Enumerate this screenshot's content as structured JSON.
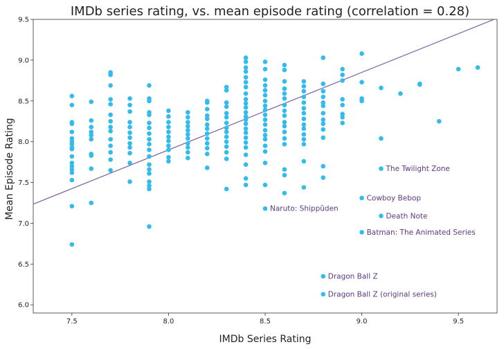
{
  "chart_data": {
    "type": "scatter",
    "title": "IMDb series rating, vs. mean episode rating (correlation = 0.28)",
    "xlabel": "IMDb Series Rating",
    "ylabel": "Mean Episode Rating",
    "xlim": [
      7.3,
      9.7
    ],
    "ylim": [
      5.9,
      9.5
    ],
    "xticks": [
      "7.5",
      "8.0",
      "8.5",
      "9.0",
      "9.5"
    ],
    "yticks": [
      "6.0",
      "6.5",
      "7.0",
      "7.5",
      "8.0",
      "8.5",
      "9.0",
      "9.5"
    ],
    "grid": false,
    "point_color": "#33bbee",
    "line_color": "#7d5fa0",
    "annotation_color": "#5a3a80",
    "trendline": {
      "slope": 0.95,
      "intercept": 0.3
    },
    "points": [
      [
        7.5,
        8.56
      ],
      [
        7.5,
        8.45
      ],
      [
        7.5,
        8.24
      ],
      [
        7.5,
        8.22
      ],
      [
        7.5,
        8.12
      ],
      [
        7.5,
        8.04
      ],
      [
        7.5,
        8.0
      ],
      [
        7.5,
        7.97
      ],
      [
        7.5,
        7.93
      ],
      [
        7.5,
        7.91
      ],
      [
        7.5,
        7.82
      ],
      [
        7.5,
        7.74
      ],
      [
        7.5,
        7.7
      ],
      [
        7.5,
        7.66
      ],
      [
        7.5,
        7.62
      ],
      [
        7.5,
        7.53
      ],
      [
        7.5,
        7.21
      ],
      [
        7.5,
        6.74
      ],
      [
        7.6,
        8.49
      ],
      [
        7.6,
        8.26
      ],
      [
        7.6,
        8.18
      ],
      [
        7.6,
        8.12
      ],
      [
        7.6,
        8.08
      ],
      [
        7.6,
        8.03
      ],
      [
        7.6,
        7.85
      ],
      [
        7.6,
        7.83
      ],
      [
        7.6,
        7.67
      ],
      [
        7.6,
        7.25
      ],
      [
        7.7,
        8.85
      ],
      [
        7.7,
        8.82
      ],
      [
        7.7,
        8.69
      ],
      [
        7.7,
        8.52
      ],
      [
        7.7,
        8.46
      ],
      [
        7.7,
        8.33
      ],
      [
        7.7,
        8.25
      ],
      [
        7.7,
        8.18
      ],
      [
        7.7,
        8.13
      ],
      [
        7.7,
        8.03
      ],
      [
        7.7,
        7.95
      ],
      [
        7.7,
        7.87
      ],
      [
        7.7,
        7.78
      ],
      [
        7.7,
        7.65
      ],
      [
        7.8,
        8.53
      ],
      [
        7.8,
        8.45
      ],
      [
        7.8,
        8.37
      ],
      [
        7.8,
        8.24
      ],
      [
        7.8,
        8.18
      ],
      [
        7.8,
        8.11
      ],
      [
        7.8,
        8.05
      ],
      [
        7.8,
        7.98
      ],
      [
        7.8,
        7.93
      ],
      [
        7.8,
        7.86
      ],
      [
        7.8,
        7.74
      ],
      [
        7.8,
        7.51
      ],
      [
        7.9,
        8.69
      ],
      [
        7.9,
        8.53
      ],
      [
        7.9,
        8.5
      ],
      [
        7.9,
        8.36
      ],
      [
        7.9,
        8.33
      ],
      [
        7.9,
        8.23
      ],
      [
        7.9,
        8.17
      ],
      [
        7.9,
        8.1
      ],
      [
        7.9,
        8.03
      ],
      [
        7.9,
        7.97
      ],
      [
        7.9,
        7.9
      ],
      [
        7.9,
        7.82
      ],
      [
        7.9,
        7.72
      ],
      [
        7.9,
        7.66
      ],
      [
        7.9,
        7.61
      ],
      [
        7.9,
        7.51
      ],
      [
        7.9,
        7.46
      ],
      [
        7.9,
        7.42
      ],
      [
        7.9,
        6.96
      ],
      [
        8.0,
        8.38
      ],
      [
        8.0,
        8.31
      ],
      [
        8.0,
        8.24
      ],
      [
        8.0,
        8.18
      ],
      [
        8.0,
        8.12
      ],
      [
        8.0,
        8.06
      ],
      [
        8.0,
        8.01
      ],
      [
        8.0,
        7.95
      ],
      [
        8.0,
        7.9
      ],
      [
        8.0,
        7.81
      ],
      [
        8.0,
        7.76
      ],
      [
        8.1,
        8.36
      ],
      [
        8.1,
        8.3
      ],
      [
        8.1,
        8.24
      ],
      [
        8.1,
        8.19
      ],
      [
        8.1,
        8.14
      ],
      [
        8.1,
        8.09
      ],
      [
        8.1,
        8.04
      ],
      [
        8.1,
        7.98
      ],
      [
        8.1,
        7.93
      ],
      [
        8.1,
        7.87
      ],
      [
        8.1,
        7.8
      ],
      [
        8.2,
        8.5
      ],
      [
        8.2,
        8.48
      ],
      [
        8.2,
        8.4
      ],
      [
        8.2,
        8.32
      ],
      [
        8.2,
        8.28
      ],
      [
        8.2,
        8.21
      ],
      [
        8.2,
        8.16
      ],
      [
        8.2,
        8.1
      ],
      [
        8.2,
        8.04
      ],
      [
        8.2,
        7.98
      ],
      [
        8.2,
        7.92
      ],
      [
        8.2,
        7.85
      ],
      [
        8.2,
        7.68
      ],
      [
        8.3,
        8.67
      ],
      [
        8.3,
        8.63
      ],
      [
        8.3,
        8.48
      ],
      [
        8.3,
        8.43
      ],
      [
        8.3,
        8.35
      ],
      [
        8.3,
        8.3
      ],
      [
        8.3,
        8.23
      ],
      [
        8.3,
        8.17
      ],
      [
        8.3,
        8.12
      ],
      [
        8.3,
        8.06
      ],
      [
        8.3,
        8.0
      ],
      [
        8.3,
        7.94
      ],
      [
        8.3,
        7.87
      ],
      [
        8.3,
        7.79
      ],
      [
        8.3,
        7.42
      ],
      [
        8.4,
        9.03
      ],
      [
        8.4,
        8.98
      ],
      [
        8.4,
        8.91
      ],
      [
        8.4,
        8.86
      ],
      [
        8.4,
        8.79
      ],
      [
        8.4,
        8.73
      ],
      [
        8.4,
        8.67
      ],
      [
        8.4,
        8.59
      ],
      [
        8.4,
        8.52
      ],
      [
        8.4,
        8.47
      ],
      [
        8.4,
        8.42
      ],
      [
        8.4,
        8.36
      ],
      [
        8.4,
        8.31
      ],
      [
        8.4,
        8.27
      ],
      [
        8.4,
        8.22
      ],
      [
        8.4,
        8.16
      ],
      [
        8.4,
        8.11
      ],
      [
        8.4,
        8.05
      ],
      [
        8.4,
        7.99
      ],
      [
        8.4,
        7.93
      ],
      [
        8.4,
        7.84
      ],
      [
        8.4,
        7.72
      ],
      [
        8.4,
        7.55
      ],
      [
        8.4,
        7.47
      ],
      [
        8.5,
        8.98
      ],
      [
        8.5,
        8.89
      ],
      [
        8.5,
        8.76
      ],
      [
        8.5,
        8.69
      ],
      [
        8.5,
        8.63
      ],
      [
        8.5,
        8.57
      ],
      [
        8.5,
        8.5
      ],
      [
        8.5,
        8.44
      ],
      [
        8.5,
        8.39
      ],
      [
        8.5,
        8.33
      ],
      [
        8.5,
        8.27
      ],
      [
        8.5,
        8.21
      ],
      [
        8.5,
        8.14
      ],
      [
        8.5,
        8.08
      ],
      [
        8.5,
        8.03
      ],
      [
        8.5,
        7.95
      ],
      [
        8.5,
        7.88
      ],
      [
        8.5,
        7.74
      ],
      [
        8.5,
        7.47
      ],
      [
        8.5,
        7.18
      ],
      [
        8.6,
        8.94
      ],
      [
        8.6,
        8.88
      ],
      [
        8.6,
        8.74
      ],
      [
        8.6,
        8.65
      ],
      [
        8.6,
        8.59
      ],
      [
        8.6,
        8.53
      ],
      [
        8.6,
        8.45
      ],
      [
        8.6,
        8.38
      ],
      [
        8.6,
        8.32
      ],
      [
        8.6,
        8.24
      ],
      [
        8.6,
        8.19
      ],
      [
        8.6,
        8.12
      ],
      [
        8.6,
        8.04
      ],
      [
        8.6,
        7.97
      ],
      [
        8.6,
        7.66
      ],
      [
        8.6,
        7.59
      ],
      [
        8.6,
        7.37
      ],
      [
        8.7,
        8.74
      ],
      [
        8.7,
        8.68
      ],
      [
        8.7,
        8.62
      ],
      [
        8.7,
        8.55
      ],
      [
        8.7,
        8.48
      ],
      [
        8.7,
        8.41
      ],
      [
        8.7,
        8.35
      ],
      [
        8.7,
        8.28
      ],
      [
        8.7,
        8.21
      ],
      [
        8.7,
        8.16
      ],
      [
        8.7,
        8.09
      ],
      [
        8.7,
        8.03
      ],
      [
        8.7,
        7.97
      ],
      [
        8.7,
        7.76
      ],
      [
        8.7,
        7.44
      ],
      [
        8.8,
        9.03
      ],
      [
        8.8,
        8.71
      ],
      [
        8.8,
        8.62
      ],
      [
        8.8,
        8.55
      ],
      [
        8.8,
        8.48
      ],
      [
        8.8,
        8.44
      ],
      [
        8.8,
        8.35
      ],
      [
        8.8,
        8.27
      ],
      [
        8.8,
        8.22
      ],
      [
        8.8,
        8.15
      ],
      [
        8.8,
        8.05
      ],
      [
        8.8,
        7.7
      ],
      [
        8.8,
        7.56
      ],
      [
        8.8,
        6.35
      ],
      [
        8.8,
        6.13
      ],
      [
        8.9,
        8.89
      ],
      [
        8.9,
        8.82
      ],
      [
        8.9,
        8.75
      ],
      [
        8.9,
        8.52
      ],
      [
        8.9,
        8.45
      ],
      [
        8.9,
        8.34
      ],
      [
        8.9,
        8.3
      ],
      [
        8.9,
        8.23
      ],
      [
        9.0,
        9.08
      ],
      [
        9.0,
        8.73
      ],
      [
        9.0,
        8.53
      ],
      [
        9.0,
        8.5
      ],
      [
        9.0,
        7.31
      ],
      [
        9.0,
        6.89
      ],
      [
        9.1,
        8.66
      ],
      [
        9.1,
        8.04
      ],
      [
        9.1,
        7.67
      ],
      [
        9.1,
        7.09
      ],
      [
        9.2,
        8.59
      ],
      [
        9.3,
        8.71
      ],
      [
        9.3,
        8.7
      ],
      [
        9.4,
        8.25
      ],
      [
        9.5,
        8.89
      ],
      [
        9.6,
        8.91
      ]
    ],
    "annotations": [
      {
        "label": "The Twilight Zone",
        "x": 9.1,
        "y": 7.67
      },
      {
        "label": "Cowboy Bebop",
        "x": 9.0,
        "y": 7.31
      },
      {
        "label": "Death Note",
        "x": 9.1,
        "y": 7.09
      },
      {
        "label": "Batman: The Animated Series",
        "x": 9.0,
        "y": 6.89
      },
      {
        "label": "Naruto: Shippûden",
        "x": 8.5,
        "y": 7.18
      },
      {
        "label": "Dragon Ball Z",
        "x": 8.8,
        "y": 6.35
      },
      {
        "label": "Dragon Ball Z (original series)",
        "x": 8.8,
        "y": 6.13
      }
    ]
  }
}
